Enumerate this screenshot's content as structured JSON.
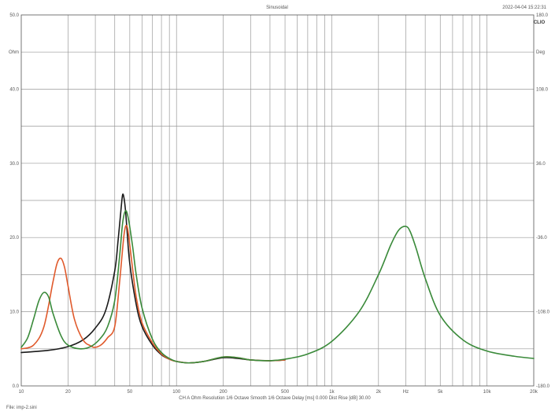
{
  "header": {
    "title": "Sinusoidal",
    "timestamp": "2022-04-04 15:22:31",
    "logo": "CLIO"
  },
  "footer": {
    "info": "CH A   Ohm   Resolution  1/6 Octave    Smooth  1/6 Octave    Delay [ms] 0.000    Dist Rise [dB] 30.00",
    "file": "File: imp-2.sini"
  },
  "chart_data": {
    "type": "line",
    "title": "Sinusoidal",
    "xlabel": "",
    "ylabel": "Ohm",
    "y2label": "Deg",
    "xscale": "log",
    "xlim": [
      10,
      20000
    ],
    "ylim": [
      0,
      50
    ],
    "y2lim": [
      -180,
      180
    ],
    "grid": true,
    "x_tick_labels": [
      {
        "value": 10,
        "label": "10"
      },
      {
        "value": 20,
        "label": "20"
      },
      {
        "value": 50,
        "label": "50"
      },
      {
        "value": 100,
        "label": "100"
      },
      {
        "value": 200,
        "label": "200"
      },
      {
        "value": 500,
        "label": "500"
      },
      {
        "value": 1000,
        "label": "1k"
      },
      {
        "value": 2000,
        "label": "2k"
      },
      {
        "value": 3000,
        "label": "Hz"
      },
      {
        "value": 5000,
        "label": "5k"
      },
      {
        "value": 10000,
        "label": "10k"
      },
      {
        "value": 20000,
        "label": "20k"
      }
    ],
    "y_tick_labels": [
      {
        "value": 0,
        "label": "0.0"
      },
      {
        "value": 10,
        "label": "10.0"
      },
      {
        "value": 20,
        "label": "20.0"
      },
      {
        "value": 30,
        "label": "30.0"
      },
      {
        "value": 40,
        "label": "40.0"
      },
      {
        "value": 45,
        "label": "Ohm"
      },
      {
        "value": 50,
        "label": "50.0"
      }
    ],
    "y2_tick_labels": [
      {
        "value": -180,
        "label": "-180.0"
      },
      {
        "value": -108,
        "label": "-108.0"
      },
      {
        "value": -36,
        "label": "-36.0"
      },
      {
        "value": 36,
        "label": "36.0"
      },
      {
        "value": 108,
        "label": "108.0"
      },
      {
        "value": 144,
        "label": "Deg"
      },
      {
        "value": 180,
        "label": "180.0"
      }
    ],
    "series": [
      {
        "color": "#1a1a1a",
        "x": [
          10,
          15,
          20,
          25,
          30,
          35,
          40,
          42,
          44,
          45,
          46,
          47,
          48,
          50,
          55,
          60,
          70,
          80,
          90,
          100,
          120,
          150,
          200,
          250,
          300,
          400,
          500
        ],
        "y": [
          4.5,
          4.8,
          5.3,
          6.2,
          7.8,
          10.2,
          15.5,
          19.5,
          24.0,
          25.8,
          25.2,
          23.5,
          21.0,
          16.5,
          11.0,
          8.0,
          5.5,
          4.2,
          3.6,
          3.3,
          3.1,
          3.3,
          3.8,
          3.7,
          3.5,
          3.4,
          3.5
        ]
      },
      {
        "color": "#e05a2c",
        "x": [
          10,
          12,
          14,
          16,
          17,
          18,
          19,
          20,
          22,
          25,
          28,
          30,
          33,
          36,
          40,
          43,
          46,
          48,
          50,
          52,
          55,
          60,
          70,
          80,
          90,
          100,
          120,
          150,
          200,
          250,
          300,
          400,
          500
        ],
        "y": [
          5.0,
          5.5,
          8.0,
          14.0,
          16.5,
          17.2,
          16.0,
          13.5,
          9.0,
          6.2,
          5.4,
          5.2,
          5.6,
          6.5,
          8.0,
          14.0,
          20.5,
          21.5,
          19.0,
          16.0,
          12.0,
          8.5,
          5.8,
          4.3,
          3.6,
          3.3,
          3.1,
          3.3,
          3.9,
          3.8,
          3.5,
          3.4,
          3.5
        ]
      },
      {
        "color": "#3a8a3a",
        "x": [
          10,
          11,
          12,
          13,
          14,
          15,
          16,
          18,
          20,
          24,
          28,
          32,
          36,
          40,
          43,
          45,
          47,
          49,
          52,
          55,
          60,
          70,
          80,
          90,
          100,
          120,
          150,
          200,
          250,
          300,
          400,
          500,
          700,
          1000,
          1500,
          2000,
          2400,
          2700,
          3000,
          3200,
          3500,
          4000,
          5000,
          7000,
          10000,
          15000,
          20000
        ],
        "y": [
          5.2,
          6.5,
          9.0,
          11.5,
          12.6,
          12.0,
          9.8,
          6.8,
          5.5,
          5.0,
          5.3,
          6.3,
          8.0,
          11.5,
          17.5,
          22.0,
          23.6,
          22.5,
          19.0,
          15.0,
          10.5,
          6.3,
          4.5,
          3.7,
          3.3,
          3.1,
          3.3,
          3.9,
          3.8,
          3.5,
          3.4,
          3.6,
          4.3,
          6.0,
          10.0,
          15.0,
          19.0,
          21.0,
          21.5,
          20.8,
          18.5,
          14.5,
          9.5,
          6.2,
          4.7,
          4.0,
          3.7
        ]
      }
    ]
  }
}
